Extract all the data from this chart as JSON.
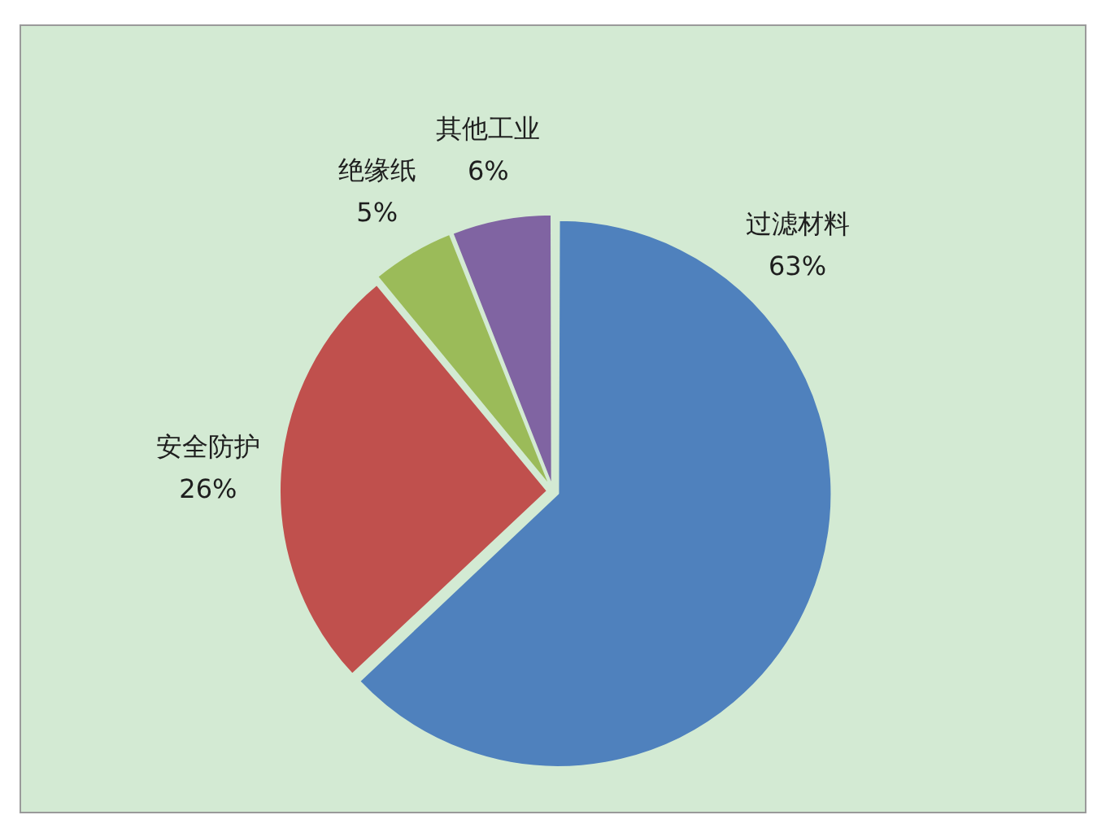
{
  "chart_data": {
    "type": "pie",
    "categories": [
      "过滤材料",
      "安全防护",
      "绝缘纸",
      "其他工业"
    ],
    "values": [
      63,
      26,
      5,
      6
    ],
    "colors": [
      "#4f81bd",
      "#c0504d",
      "#9bbb59",
      "#8064a2"
    ],
    "value_labels": [
      "63%",
      "26%",
      "5%",
      "6%"
    ],
    "legend": false
  }
}
